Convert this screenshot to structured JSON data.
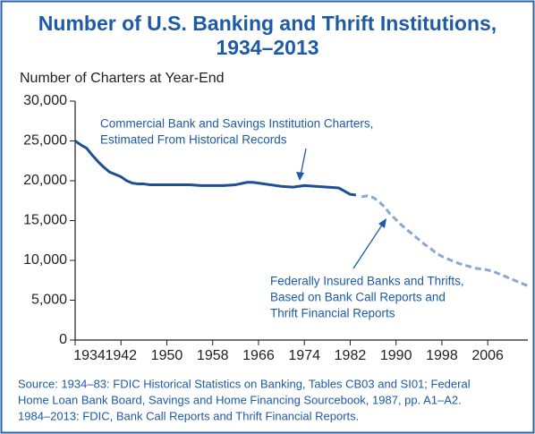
{
  "chart_data": {
    "type": "line",
    "title": [
      "Number of U.S. Banking and Thrift Institutions,",
      "1934–2013"
    ],
    "y_label": "Number of Charters at Year-End",
    "series": [
      {
        "name": "Commercial Bank and Savings Institution Charters, Estimated From Historical Records",
        "color": "#1f4e96",
        "dashed": false,
        "x": [
          1934,
          1935,
          1936,
          1937,
          1938,
          1939,
          1940,
          1941,
          1942,
          1943,
          1944,
          1945,
          1946,
          1947,
          1948,
          1950,
          1952,
          1954,
          1956,
          1958,
          1960,
          1962,
          1964,
          1965,
          1966,
          1968,
          1970,
          1972,
          1974,
          1976,
          1978,
          1980,
          1981,
          1982,
          1983
        ],
        "values": [
          25000,
          24500,
          24100,
          23200,
          22400,
          21700,
          21100,
          20800,
          20500,
          20000,
          19700,
          19600,
          19600,
          19500,
          19500,
          19500,
          19500,
          19500,
          19400,
          19400,
          19400,
          19500,
          19800,
          19800,
          19700,
          19500,
          19300,
          19200,
          19400,
          19300,
          19200,
          19100,
          18700,
          18300,
          18200
        ]
      },
      {
        "name": "Federally Insured Banks and Thrifts, Based on Bank Call Reports and Thrift Financial Reports",
        "color": "#8ea7cf",
        "dashed": true,
        "x": [
          1984,
          1985,
          1986,
          1987,
          1988,
          1989,
          1990,
          1991,
          1992,
          1993,
          1994,
          1995,
          1996,
          1997,
          1998,
          1999,
          2000,
          2001,
          2002,
          2003,
          2004,
          2005,
          2006,
          2007,
          2008,
          2009,
          2010,
          2011,
          2012,
          2013
        ],
        "values": [
          18000,
          18100,
          17900,
          17400,
          16700,
          15800,
          15100,
          14400,
          13800,
          13200,
          12600,
          12000,
          11500,
          10900,
          10500,
          10200,
          9900,
          9600,
          9400,
          9200,
          9000,
          8900,
          8800,
          8600,
          8300,
          8000,
          7700,
          7400,
          7100,
          6800
        ]
      }
    ],
    "xlim": [
      1934,
      2013
    ],
    "xticks": [
      1934,
      1942,
      1950,
      1958,
      1966,
      1974,
      1982,
      1990,
      1998,
      2006
    ],
    "ylim": [
      0,
      30000
    ],
    "yticks": [
      0,
      {
        "value": 5000,
        "label": "5,000"
      },
      {
        "value": 10000,
        "label": "10,000"
      },
      {
        "value": 15000,
        "label": "15,000"
      },
      {
        "value": 20000,
        "label": "20,000"
      },
      {
        "value": 25000,
        "label": "25,000"
      },
      {
        "value": 30000,
        "label": "30,000"
      }
    ],
    "annotations": [
      [
        "Commercial Bank and Savings Institution Charters,",
        "Estimated From Historical Records"
      ],
      [
        "Federally Insured Banks and Thrifts,",
        "Based on Bank Call Reports and",
        "Thrift Financial Reports"
      ]
    ],
    "source": [
      "Source: 1934–83: FDIC Historical Statistics on Banking, Tables CB03 and SI01; Federal",
      "Home Loan Bank Board, Savings and Home Financing Sourcebook, 1987, pp. A1–A2.",
      "1984–2013: FDIC, Bank Call Reports and Thrift Financial Reports."
    ]
  }
}
